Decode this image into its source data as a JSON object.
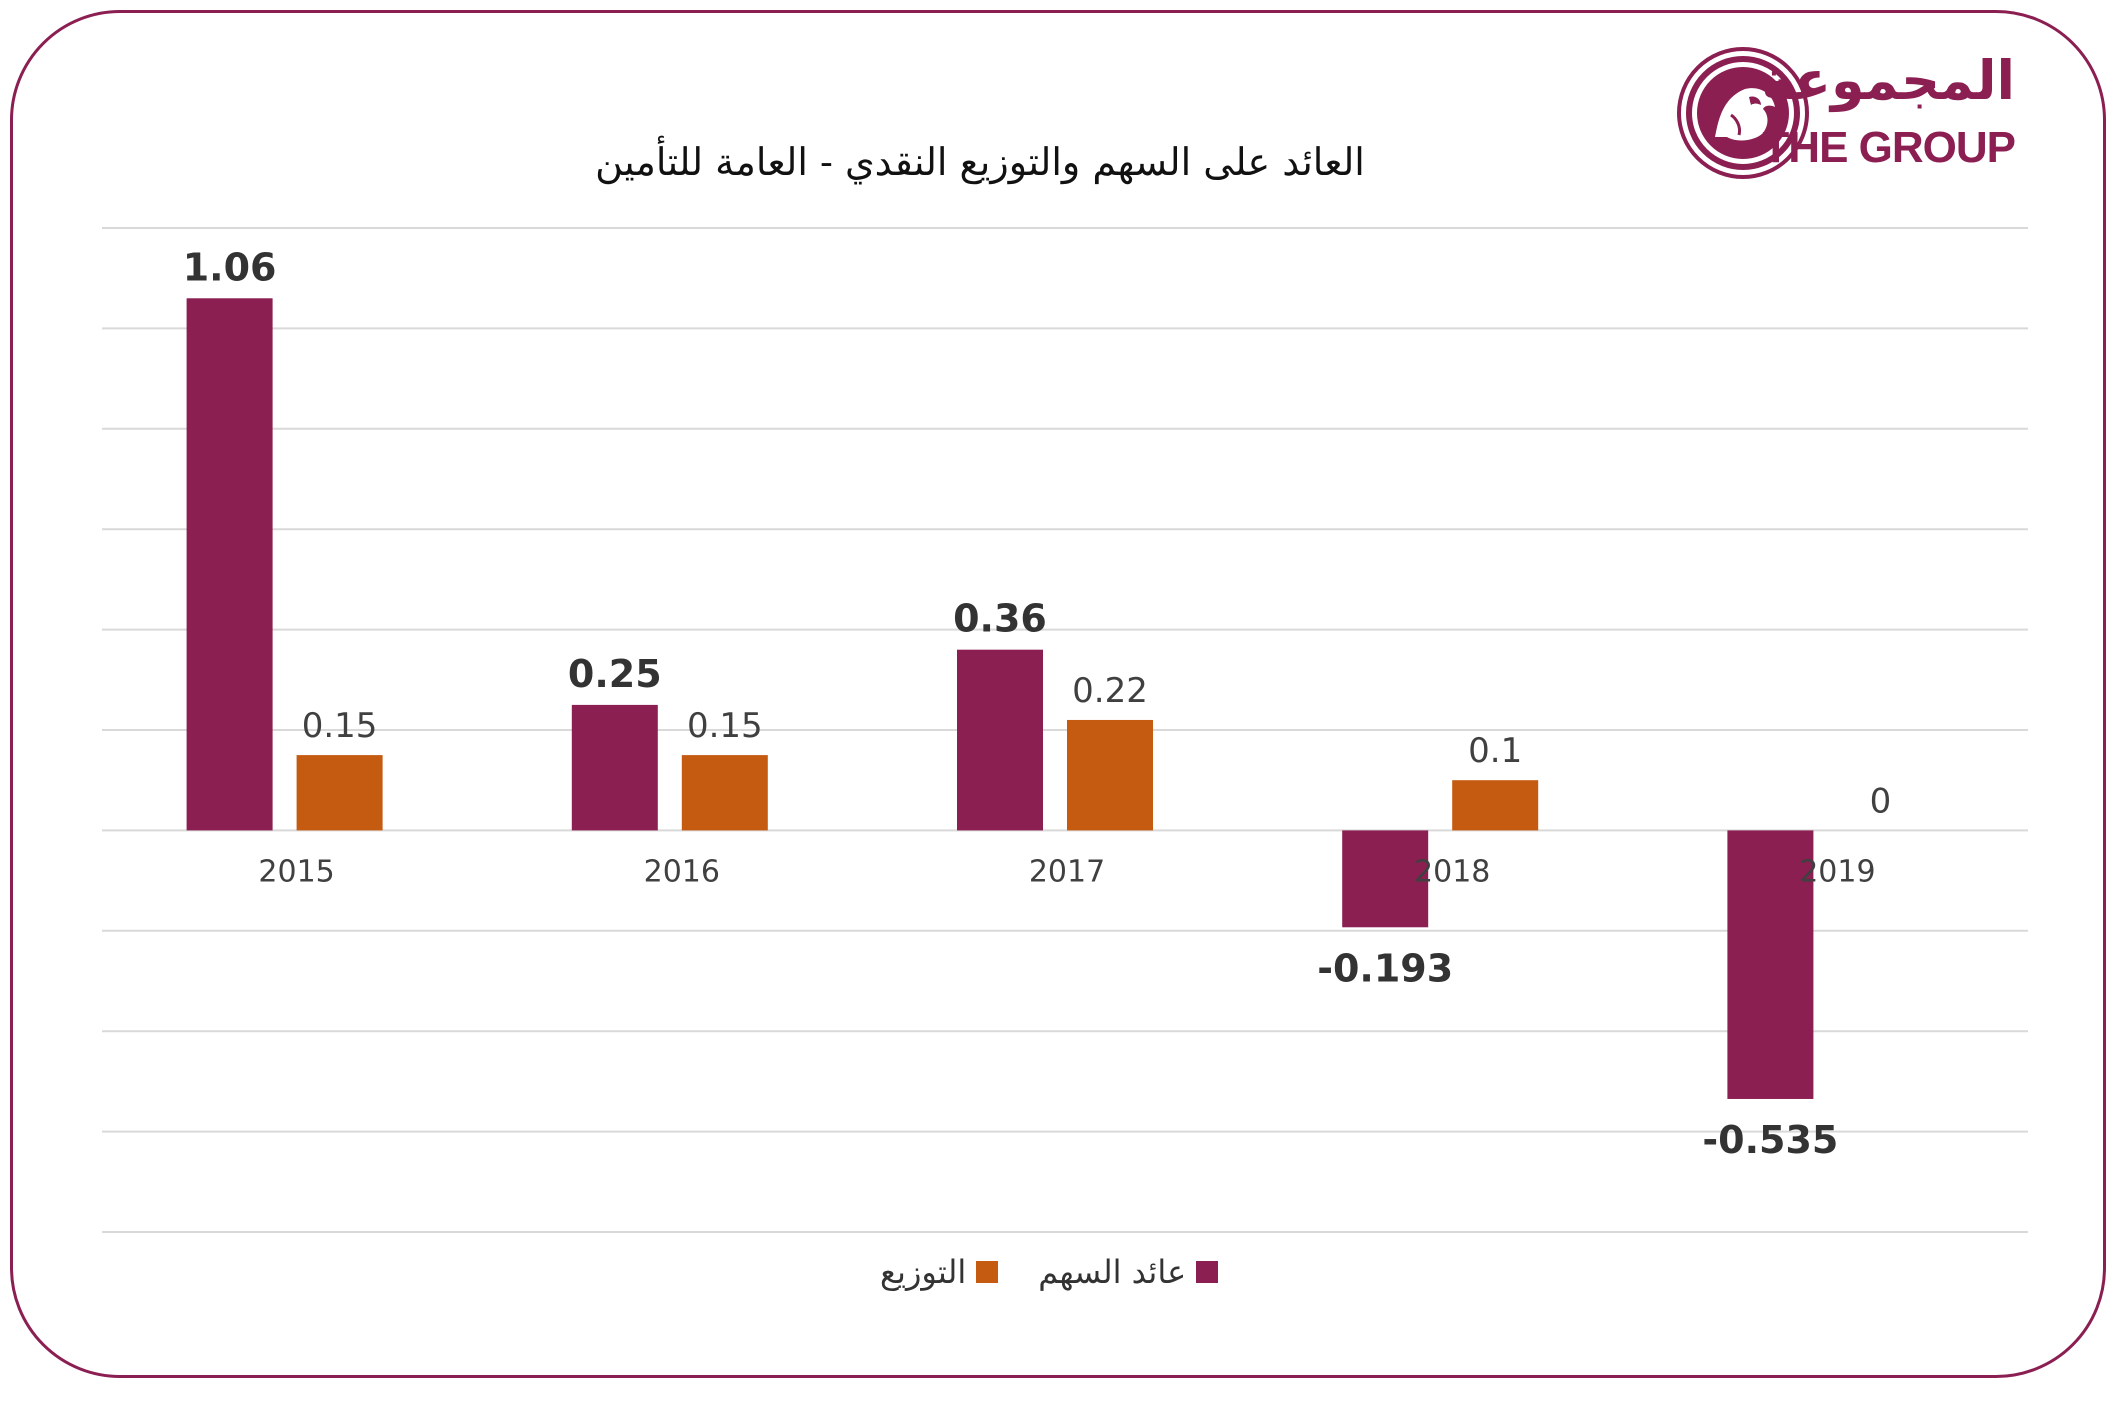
{
  "chart_data": {
    "type": "bar",
    "title": "العائد على السهم والتوزيع النقدي - العامة للتأمين",
    "categories": [
      "2015",
      "2016",
      "2017",
      "2018",
      "2019"
    ],
    "series": [
      {
        "name": "عائد السهم",
        "color": "#8b1f52",
        "values": [
          1.06,
          0.25,
          0.36,
          -0.193,
          -0.535
        ],
        "labels": [
          "1.06",
          "0.25",
          "0.36",
          "-0.193",
          "-0.535"
        ]
      },
      {
        "name": "التوزيع",
        "color": "#c55a11",
        "values": [
          0.15,
          0.15,
          0.22,
          0.1,
          0
        ],
        "labels": [
          "0.15",
          "0.15",
          "0.22",
          "0.1",
          "0"
        ]
      }
    ],
    "ylim": [
      -0.8,
      1.2
    ],
    "gridlines": [
      1.2,
      1.0,
      0.8,
      0.6,
      0.4,
      0.2,
      0,
      -0.2,
      -0.4,
      -0.6,
      -0.8
    ],
    "grid": true,
    "legend": "bottom"
  },
  "logo": {
    "arabic": "المجموعة",
    "english": "THE GROUP"
  }
}
